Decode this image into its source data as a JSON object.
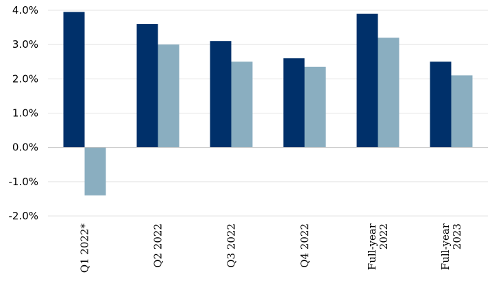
{
  "chart_data": {
    "type": "bar",
    "categories": [
      [
        "Q1 2022*"
      ],
      [
        "Q2 2022"
      ],
      [
        "Q3 2022"
      ],
      [
        "Q4 2022"
      ],
      [
        "Full-year",
        "2022"
      ],
      [
        "Full-year",
        "2023"
      ]
    ],
    "series": [
      {
        "values": [
          3.95,
          3.6,
          3.1,
          2.6,
          3.9,
          2.5
        ],
        "color": "#00306a"
      },
      {
        "values": [
          -1.4,
          3.0,
          2.5,
          2.35,
          3.2,
          2.1
        ],
        "color": "#8aaec0"
      }
    ],
    "ylim": [
      -2.0,
      4.0
    ],
    "yticks": [
      "4.0%",
      "3.0%",
      "2.0%",
      "1.0%",
      "0.0%",
      "-1.0%",
      "-2.0%"
    ],
    "ytick_values": [
      4,
      3,
      2,
      1,
      0,
      -1,
      -2
    ],
    "grid": true,
    "legend": "none",
    "title": "",
    "xlabel": "",
    "ylabel": ""
  }
}
